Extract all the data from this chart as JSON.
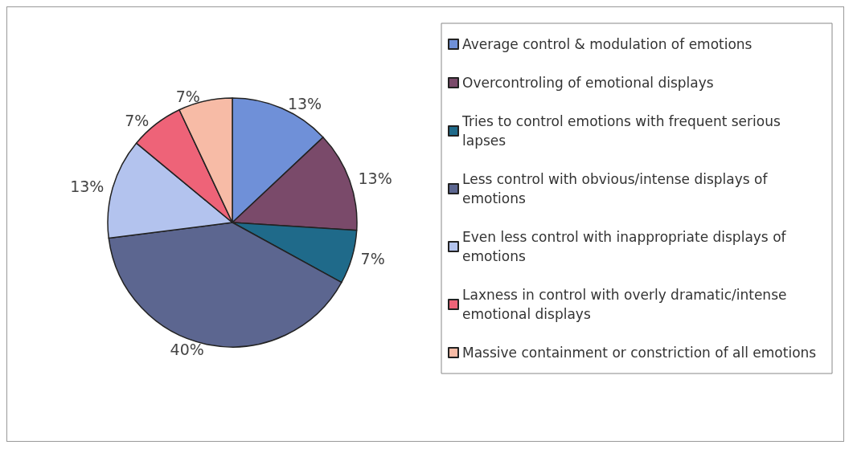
{
  "chart_data": {
    "type": "pie",
    "categories": [
      "Average control & modulation of emotions",
      "Overcontroling of emotional displays",
      "Tries to control emotions with frequent serious lapses",
      "Less control with obvious/intense displays of emotions",
      "Even less control with inappropriate displays of emotions",
      "Laxness in control with overly dramatic/intense emotional displays",
      "Massive containment or constriction of all emotions"
    ],
    "values": [
      13,
      13,
      7,
      40,
      13,
      7,
      7
    ],
    "value_labels": [
      "13%",
      "13%",
      "7%",
      "40%",
      "13%",
      "7%",
      "7%"
    ],
    "colors": [
      "#6f90d8",
      "#7a4a6a",
      "#1f6a8a",
      "#5c6690",
      "#b3c3ee",
      "#ee6378",
      "#f7bba6"
    ],
    "legend": "right"
  }
}
